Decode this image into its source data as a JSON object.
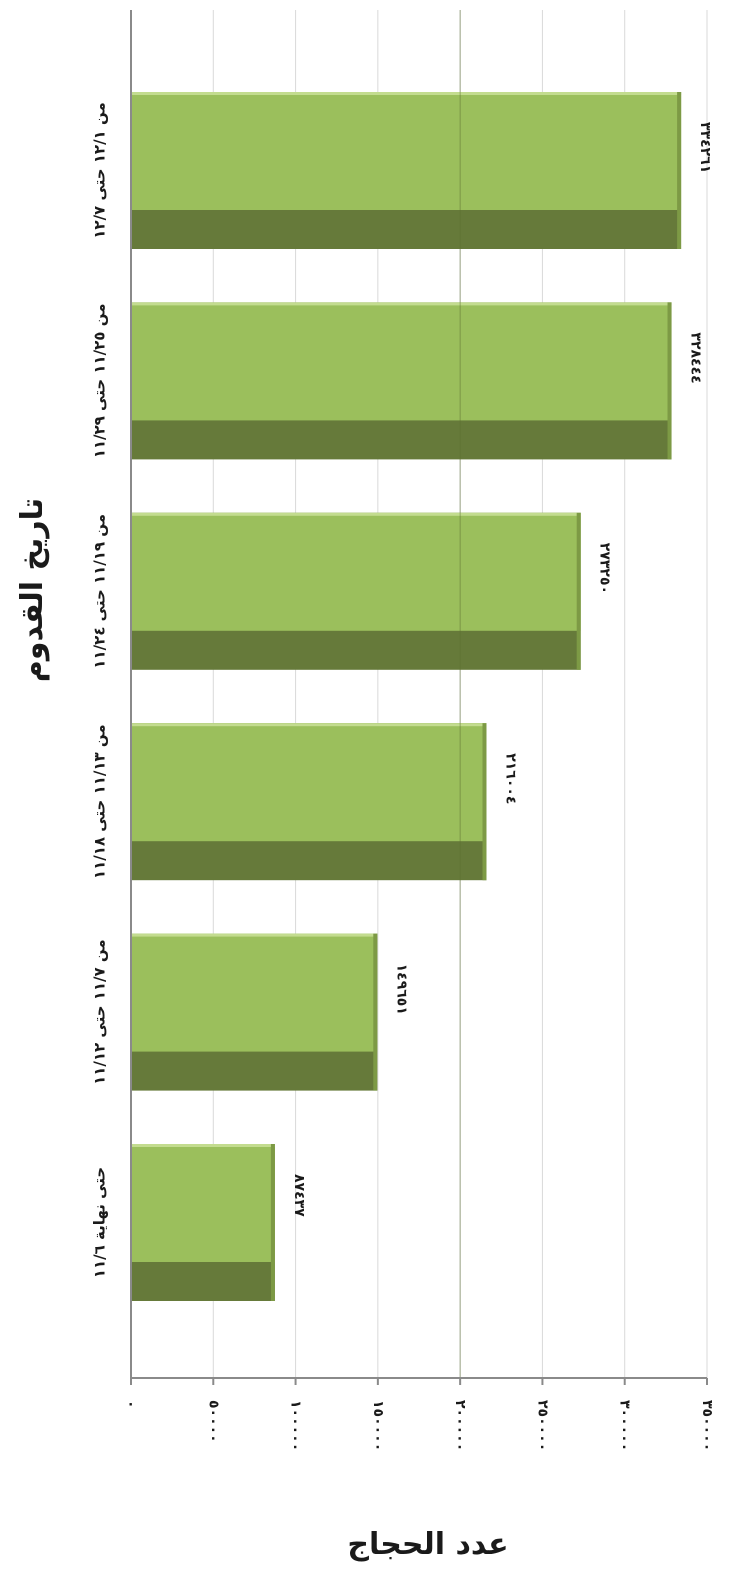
{
  "chart_data": {
    "type": "bar",
    "orientation": "horizontal",
    "title": "",
    "xlabel": "تاريخ القدوم",
    "ylabel": "عدد الحجاج",
    "categories": [
      "حتى نهاية ١١/٦",
      "من ١١/٧ حتى ١١/١٢",
      "من ١١/١٣ حتى ١١/١٨",
      "من ١١/١٩ حتى ١١/٢٤",
      "من ١١/٢٥ حتى ١١/٢٩",
      "من ١٢/١ حتى ١٢/٧"
    ],
    "values": [
      87437,
      149651,
      216004,
      273250,
      328444,
      334261
    ],
    "value_labels": [
      "٨٧٤٣٧",
      "١٤٩٦٥١",
      "٢١٦٠٠٤",
      "٢٧٣٢٥٠",
      "٣٢٨٤٤٤",
      "٣٣٤٢٦١"
    ],
    "ylim": [
      0,
      350000
    ],
    "ticks": [
      0,
      50000,
      100000,
      150000,
      200000,
      250000,
      300000,
      350000
    ],
    "tick_labels": [
      "٠",
      "٥٠٠٠٠",
      "١٠٠٠٠٠",
      "١٥٠٠٠٠",
      "٢٠٠٠٠٠",
      "٢٥٠٠٠٠",
      "٣٠٠٠٠٠",
      "٣٥٠٠٠٠"
    ],
    "colors": {
      "bar_face": "#9bbf5c",
      "bar_shadow": "#667a3a",
      "bar_highlight": "#c3dc8f",
      "axis": "#8a8a8a"
    },
    "grid": true,
    "legend": "none"
  }
}
